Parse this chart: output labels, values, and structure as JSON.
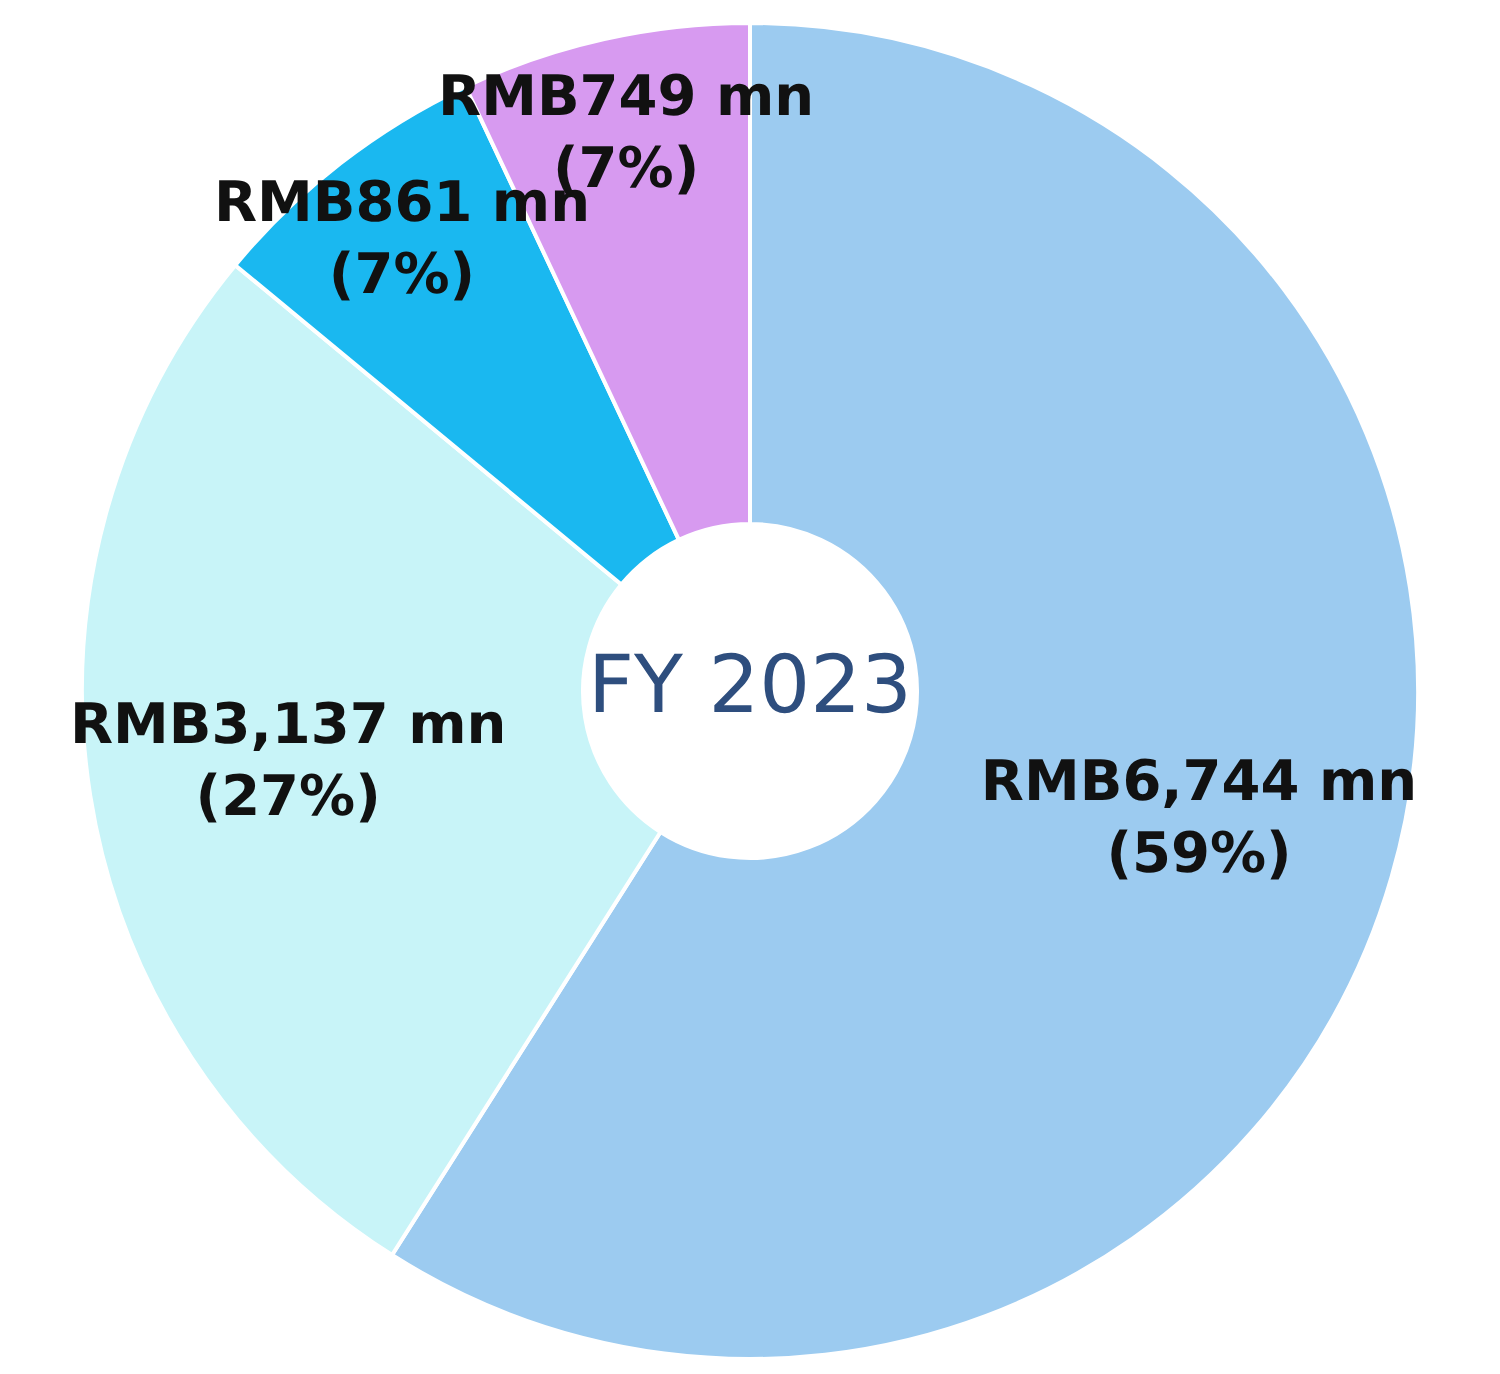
{
  "chart_data": {
    "type": "donut",
    "title": "FY 2023",
    "categories": [
      null,
      null,
      null,
      null
    ],
    "values": [
      59,
      27,
      7,
      7
    ],
    "colors": [
      "#9ccbf0",
      "#c8f4f8",
      "#1ab8f0",
      "#d79af0"
    ],
    "value_labels": [
      "RMB6,744 mn\n(59%)",
      "RMB3,137 mn\n(27%)",
      "RMB861 mn\n(7%)",
      "RMB749 mn\n(7%)"
    ],
    "legend": false
  }
}
